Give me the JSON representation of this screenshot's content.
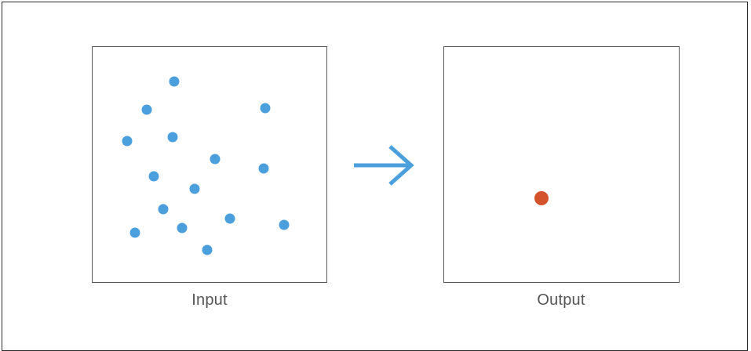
{
  "labels": {
    "input": "Input",
    "output": "Output"
  },
  "colors": {
    "input_points": "#4a9fdc",
    "output_point": "#d4532a",
    "arrow": "#4a9fdc",
    "panel_border": "#5a5a5a"
  },
  "icons": {
    "transform_arrow": "arrow-right-icon"
  },
  "input_point_count": 16,
  "output_point_count": 1
}
